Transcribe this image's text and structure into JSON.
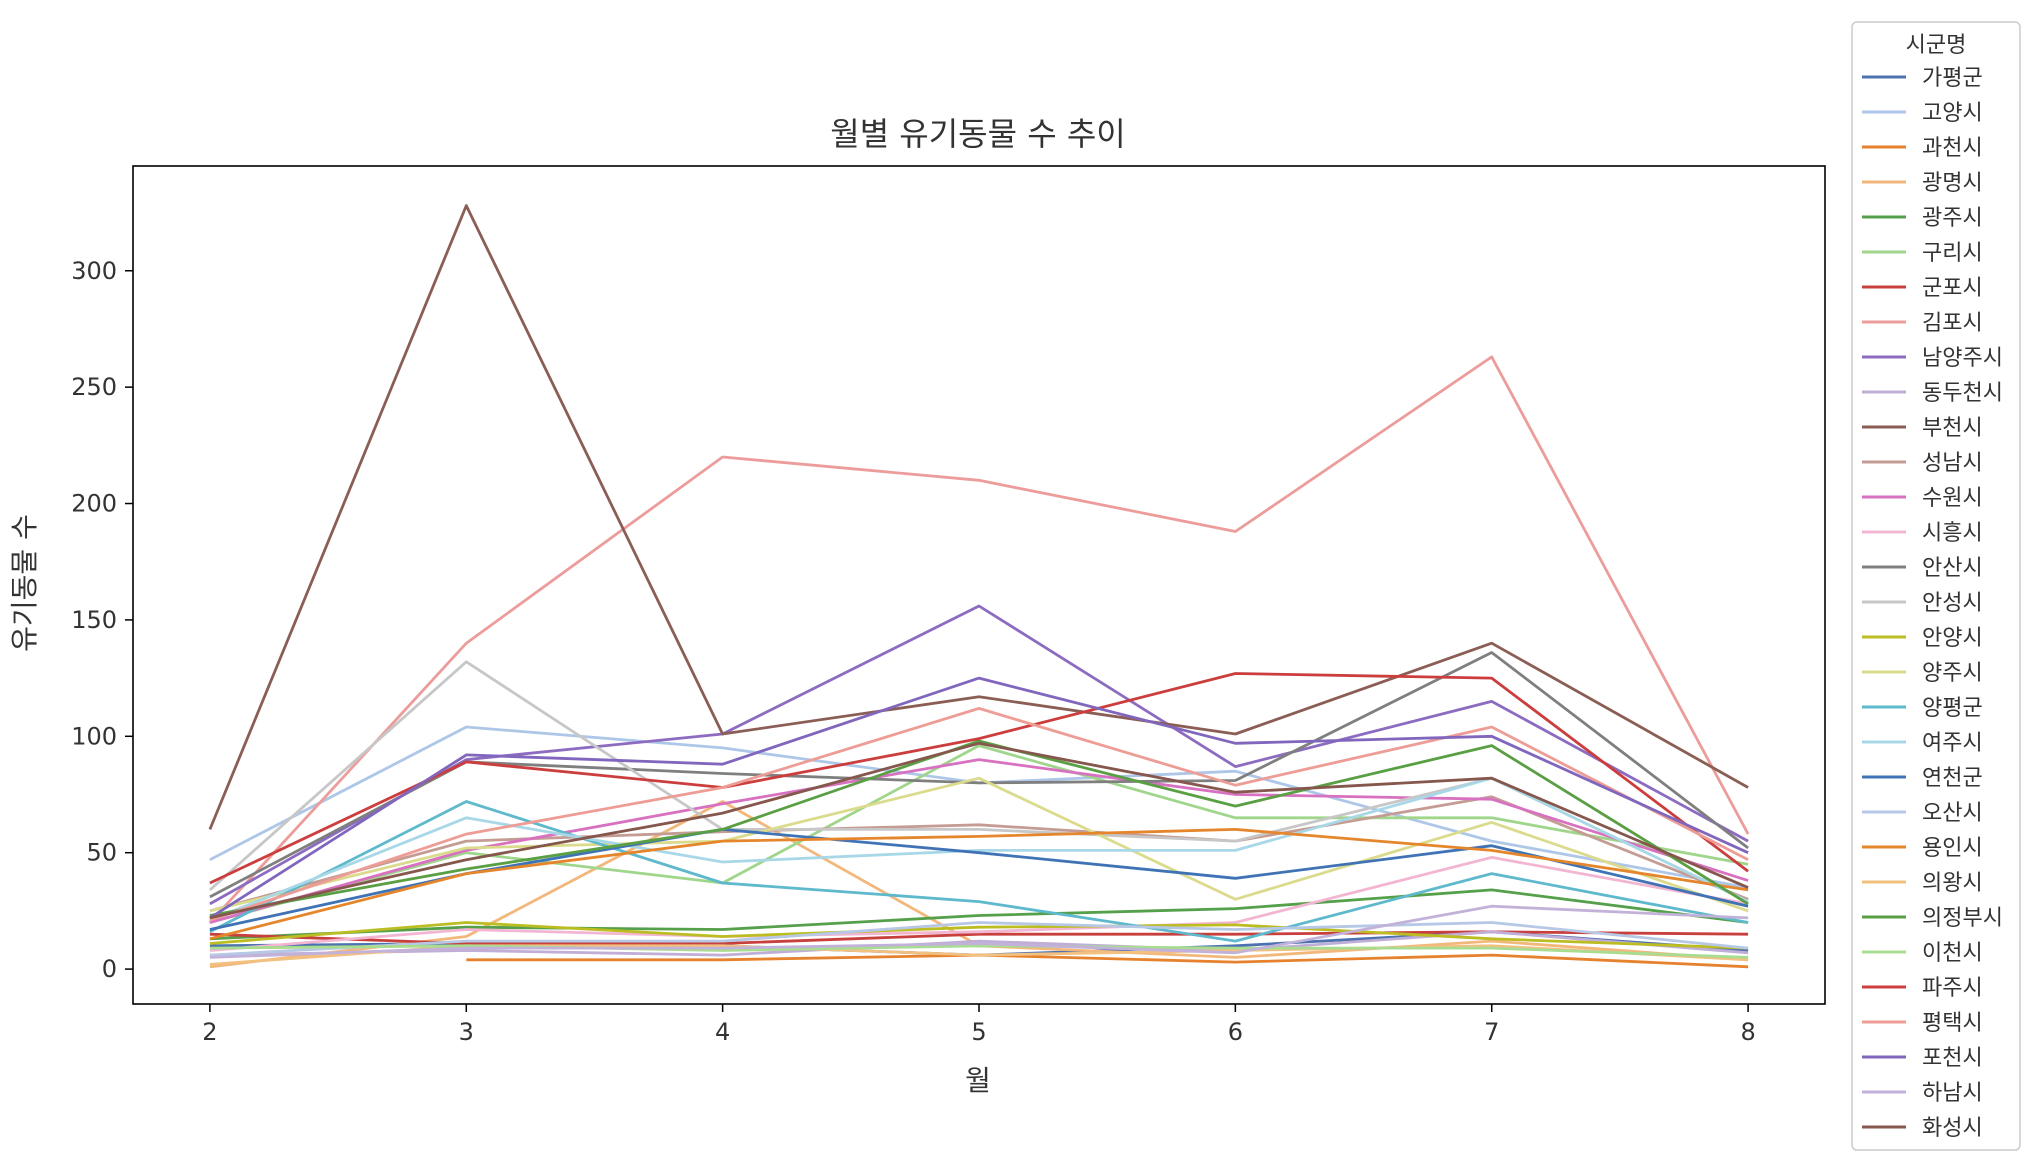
{
  "chart_data": {
    "type": "line",
    "title": "월별 유기동물 수 추이",
    "xlabel": "월",
    "ylabel": "유기동물 수",
    "x": [
      2,
      3,
      4,
      5,
      6,
      7,
      8
    ],
    "xlim": [
      1.7,
      8.3
    ],
    "ylim": [
      -15,
      345
    ],
    "yticks": [
      0,
      50,
      100,
      150,
      200,
      250,
      300
    ],
    "grid": false,
    "legend": {
      "title": "시군명",
      "placement": "outside-right"
    },
    "series": [
      {
        "name": "가평군",
        "color": "#4c72b0",
        "values": [
          10,
          11,
          10,
          6,
          10,
          16,
          8
        ]
      },
      {
        "name": "고양시",
        "color": "#aec7e8",
        "values": [
          47,
          104,
          95,
          80,
          85,
          55,
          35
        ]
      },
      {
        "name": "과천시",
        "color": "#e6822e",
        "values": [
          null,
          4,
          4,
          6,
          3,
          6,
          1
        ]
      },
      {
        "name": "광명시",
        "color": "#f2b77b",
        "values": [
          1,
          14,
          72,
          10,
          5,
          12,
          4
        ]
      },
      {
        "name": "광주시",
        "color": "#55a04a",
        "values": [
          13,
          18,
          17,
          23,
          26,
          34,
          20
        ]
      },
      {
        "name": "구리시",
        "color": "#9fd68b",
        "values": [
          20,
          50,
          37,
          96,
          65,
          65,
          45
        ]
      },
      {
        "name": "군포시",
        "color": "#c8403e",
        "values": [
          15,
          11,
          11,
          15,
          15,
          16,
          15
        ]
      },
      {
        "name": "김포시",
        "color": "#ec9d9b",
        "values": [
          20,
          140,
          220,
          210,
          188,
          263,
          58
        ]
      },
      {
        "name": "남양주시",
        "color": "#8c6bc0",
        "values": [
          28,
          90,
          101,
          156,
          87,
          115,
          55
        ]
      },
      {
        "name": "동두천시",
        "color": "#c0aed6",
        "values": [
          6,
          8,
          6,
          12,
          8,
          16,
          7
        ]
      },
      {
        "name": "부천시",
        "color": "#8b5e55",
        "values": [
          60,
          328,
          101,
          117,
          101,
          140,
          78
        ]
      },
      {
        "name": "성남시",
        "color": "#c49c94",
        "values": [
          25,
          55,
          59,
          62,
          55,
          74,
          30
        ]
      },
      {
        "name": "수원시",
        "color": "#d771c0",
        "values": [
          20,
          51,
          71,
          90,
          75,
          73,
          38
        ]
      },
      {
        "name": "시흥시",
        "color": "#f2b6d2",
        "values": [
          8,
          17,
          14,
          16,
          20,
          48,
          28
        ]
      },
      {
        "name": "안산시",
        "color": "#7f7f7f",
        "values": [
          31,
          89,
          84,
          80,
          81,
          136,
          52
        ]
      },
      {
        "name": "안성시",
        "color": "#c7c7c7",
        "values": [
          34,
          132,
          60,
          60,
          55,
          82,
          29
        ]
      },
      {
        "name": "안양시",
        "color": "#bcbd22",
        "values": [
          11,
          20,
          14,
          18,
          19,
          13,
          9
        ]
      },
      {
        "name": "양주시",
        "color": "#dbdb8d",
        "values": [
          25,
          52,
          55,
          82,
          30,
          63,
          25
        ]
      },
      {
        "name": "양평군",
        "color": "#5fb9cc",
        "values": [
          16,
          72,
          37,
          29,
          12,
          41,
          20
        ]
      },
      {
        "name": "여주시",
        "color": "#a8d8e8",
        "values": [
          21,
          65,
          46,
          51,
          51,
          82,
          29
        ]
      },
      {
        "name": "연천군",
        "color": "#3f73b5",
        "values": [
          17,
          41,
          60,
          50,
          39,
          53,
          27
        ]
      },
      {
        "name": "오산시",
        "color": "#b6c8e6",
        "values": [
          6,
          12,
          12,
          20,
          17,
          20,
          9
        ]
      },
      {
        "name": "용인시",
        "color": "#e5862c",
        "values": [
          13,
          41,
          55,
          57,
          60,
          51,
          34
        ]
      },
      {
        "name": "의왕시",
        "color": "#f2c07f",
        "values": [
          2,
          10,
          10,
          6,
          8,
          10,
          4
        ]
      },
      {
        "name": "의정부시",
        "color": "#5a9f44",
        "values": [
          23,
          43,
          60,
          98,
          70,
          96,
          28
        ]
      },
      {
        "name": "이천시",
        "color": "#a8dc91",
        "values": [
          9,
          10,
          8,
          10,
          9,
          9,
          5
        ]
      },
      {
        "name": "파주시",
        "color": "#cc3e3e",
        "values": [
          37,
          89,
          78,
          99,
          127,
          125,
          42
        ]
      },
      {
        "name": "평택시",
        "color": "#ee9c96",
        "values": [
          21,
          58,
          78,
          112,
          79,
          104,
          47
        ]
      },
      {
        "name": "포천시",
        "color": "#8066bd",
        "values": [
          22,
          92,
          88,
          125,
          97,
          100,
          50
        ]
      },
      {
        "name": "하남시",
        "color": "#c2b2da",
        "values": [
          5,
          9,
          9,
          11,
          7,
          27,
          22
        ]
      },
      {
        "name": "화성시",
        "color": "#85574d",
        "values": [
          22,
          47,
          67,
          97,
          76,
          82,
          35
        ]
      }
    ]
  }
}
